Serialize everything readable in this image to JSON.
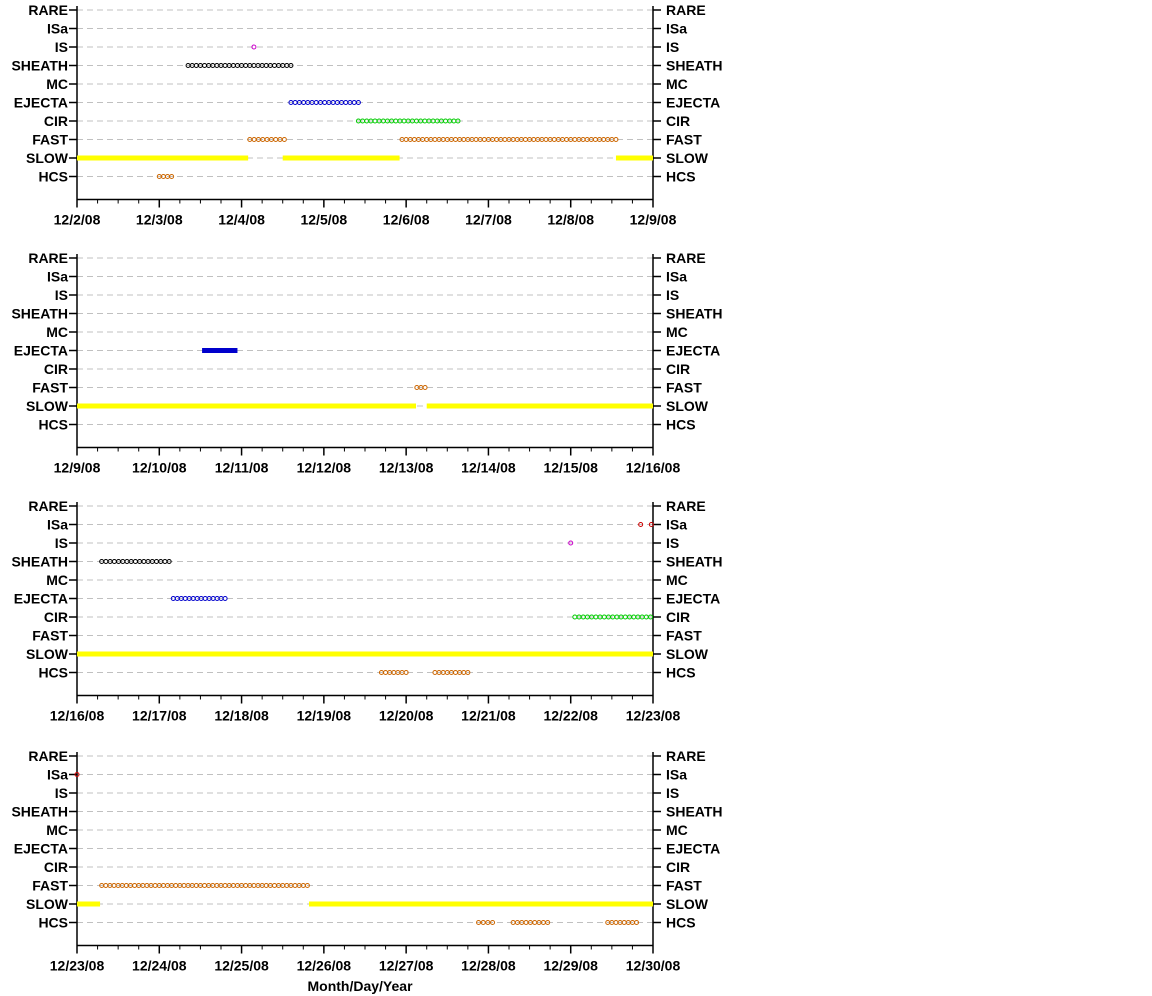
{
  "figure": {
    "xlabel": "Month/Day/Year"
  },
  "chart_data": [
    {
      "type": "scatter",
      "categories": [
        "RARE",
        "ISa",
        "IS",
        "SHEATH",
        "MC",
        "EJECTA",
        "CIR",
        "FAST",
        "SLOW",
        "HCS"
      ],
      "x_ticks": [
        "12/2/08",
        "12/3/08",
        "12/4/08",
        "12/5/08",
        "12/6/08",
        "12/7/08",
        "12/8/08",
        "12/9/08"
      ],
      "xlim": [
        0,
        7
      ],
      "grid": true,
      "series": [
        {
          "category": "IS",
          "color": "#cc00cc",
          "style": "open",
          "segments": [
            [
              2.15,
              2.15
            ]
          ]
        },
        {
          "category": "SHEATH",
          "color": "#000000",
          "style": "open",
          "segments": [
            [
              1.35,
              2.6
            ]
          ]
        },
        {
          "category": "EJECTA",
          "color": "#0000cc",
          "style": "open",
          "segments": [
            [
              2.6,
              3.42
            ]
          ]
        },
        {
          "category": "CIR",
          "color": "#00cc00",
          "style": "open",
          "segments": [
            [
              3.42,
              4.63
            ]
          ]
        },
        {
          "category": "FAST",
          "color": "#cc6600",
          "style": "open",
          "segments": [
            [
              2.1,
              2.52
            ],
            [
              3.95,
              6.55
            ]
          ]
        },
        {
          "category": "SLOW",
          "color": "#ffff00",
          "style": "filled",
          "segments": [
            [
              0,
              2.08
            ],
            [
              2.5,
              3.92
            ],
            [
              6.55,
              7
            ]
          ]
        },
        {
          "category": "HCS",
          "color": "#cc6600",
          "style": "open",
          "segments": [
            [
              1.0,
              1.15
            ]
          ]
        }
      ]
    },
    {
      "type": "scatter",
      "categories": [
        "RARE",
        "ISa",
        "IS",
        "SHEATH",
        "MC",
        "EJECTA",
        "CIR",
        "FAST",
        "SLOW",
        "HCS"
      ],
      "x_ticks": [
        "12/9/08",
        "12/10/08",
        "12/11/08",
        "12/12/08",
        "12/13/08",
        "12/14/08",
        "12/15/08",
        "12/16/08"
      ],
      "xlim": [
        0,
        7
      ],
      "grid": true,
      "series": [
        {
          "category": "EJECTA",
          "color": "#0000cc",
          "style": "filled",
          "segments": [
            [
              1.52,
              1.95
            ]
          ]
        },
        {
          "category": "FAST",
          "color": "#cc6600",
          "style": "open",
          "segments": [
            [
              4.13,
              4.23
            ]
          ]
        },
        {
          "category": "SLOW",
          "color": "#ffff00",
          "style": "filled",
          "segments": [
            [
              0,
              4.12
            ],
            [
              4.25,
              7
            ]
          ]
        }
      ]
    },
    {
      "type": "scatter",
      "categories": [
        "RARE",
        "ISa",
        "IS",
        "SHEATH",
        "MC",
        "EJECTA",
        "CIR",
        "FAST",
        "SLOW",
        "HCS"
      ],
      "x_ticks": [
        "12/16/08",
        "12/17/08",
        "12/18/08",
        "12/19/08",
        "12/20/08",
        "12/21/08",
        "12/22/08",
        "12/23/08"
      ],
      "xlim": [
        0,
        7
      ],
      "grid": true,
      "series": [
        {
          "category": "ISa",
          "color": "#cc0000",
          "style": "open",
          "segments": [
            [
              6.85,
              6.85
            ],
            [
              6.98,
              6.98
            ]
          ]
        },
        {
          "category": "IS",
          "color": "#cc00cc",
          "style": "open",
          "segments": [
            [
              6.0,
              6.0
            ]
          ]
        },
        {
          "category": "SHEATH",
          "color": "#000000",
          "style": "open",
          "segments": [
            [
              0.3,
              1.12
            ]
          ]
        },
        {
          "category": "EJECTA",
          "color": "#0000cc",
          "style": "open",
          "segments": [
            [
              1.17,
              1.8
            ]
          ]
        },
        {
          "category": "CIR",
          "color": "#00cc00",
          "style": "open",
          "segments": [
            [
              6.05,
              6.97
            ]
          ]
        },
        {
          "category": "SLOW",
          "color": "#ffff00",
          "style": "filled",
          "segments": [
            [
              0,
              7
            ]
          ]
        },
        {
          "category": "HCS",
          "color": "#cc6600",
          "style": "open",
          "segments": [
            [
              3.7,
              4.0
            ],
            [
              4.35,
              4.75
            ]
          ]
        }
      ]
    },
    {
      "type": "scatter",
      "categories": [
        "RARE",
        "ISa",
        "IS",
        "SHEATH",
        "MC",
        "EJECTA",
        "CIR",
        "FAST",
        "SLOW",
        "HCS"
      ],
      "x_ticks": [
        "12/23/08",
        "12/24/08",
        "12/25/08",
        "12/26/08",
        "12/27/08",
        "12/28/08",
        "12/29/08",
        "12/30/08"
      ],
      "xlim": [
        0,
        7
      ],
      "grid": true,
      "series": [
        {
          "category": "ISa",
          "color": "#cc0000",
          "style": "open",
          "segments": [
            [
              0.0,
              0.0
            ]
          ]
        },
        {
          "category": "FAST",
          "color": "#cc6600",
          "style": "open",
          "segments": [
            [
              0.3,
              2.8
            ]
          ]
        },
        {
          "category": "SLOW",
          "color": "#ffff00",
          "style": "filled",
          "segments": [
            [
              0,
              0.28
            ],
            [
              2.82,
              7
            ]
          ]
        },
        {
          "category": "HCS",
          "color": "#cc6600",
          "style": "open",
          "segments": [
            [
              4.88,
              5.05
            ],
            [
              5.3,
              5.72
            ],
            [
              6.45,
              6.8
            ]
          ]
        }
      ]
    }
  ]
}
